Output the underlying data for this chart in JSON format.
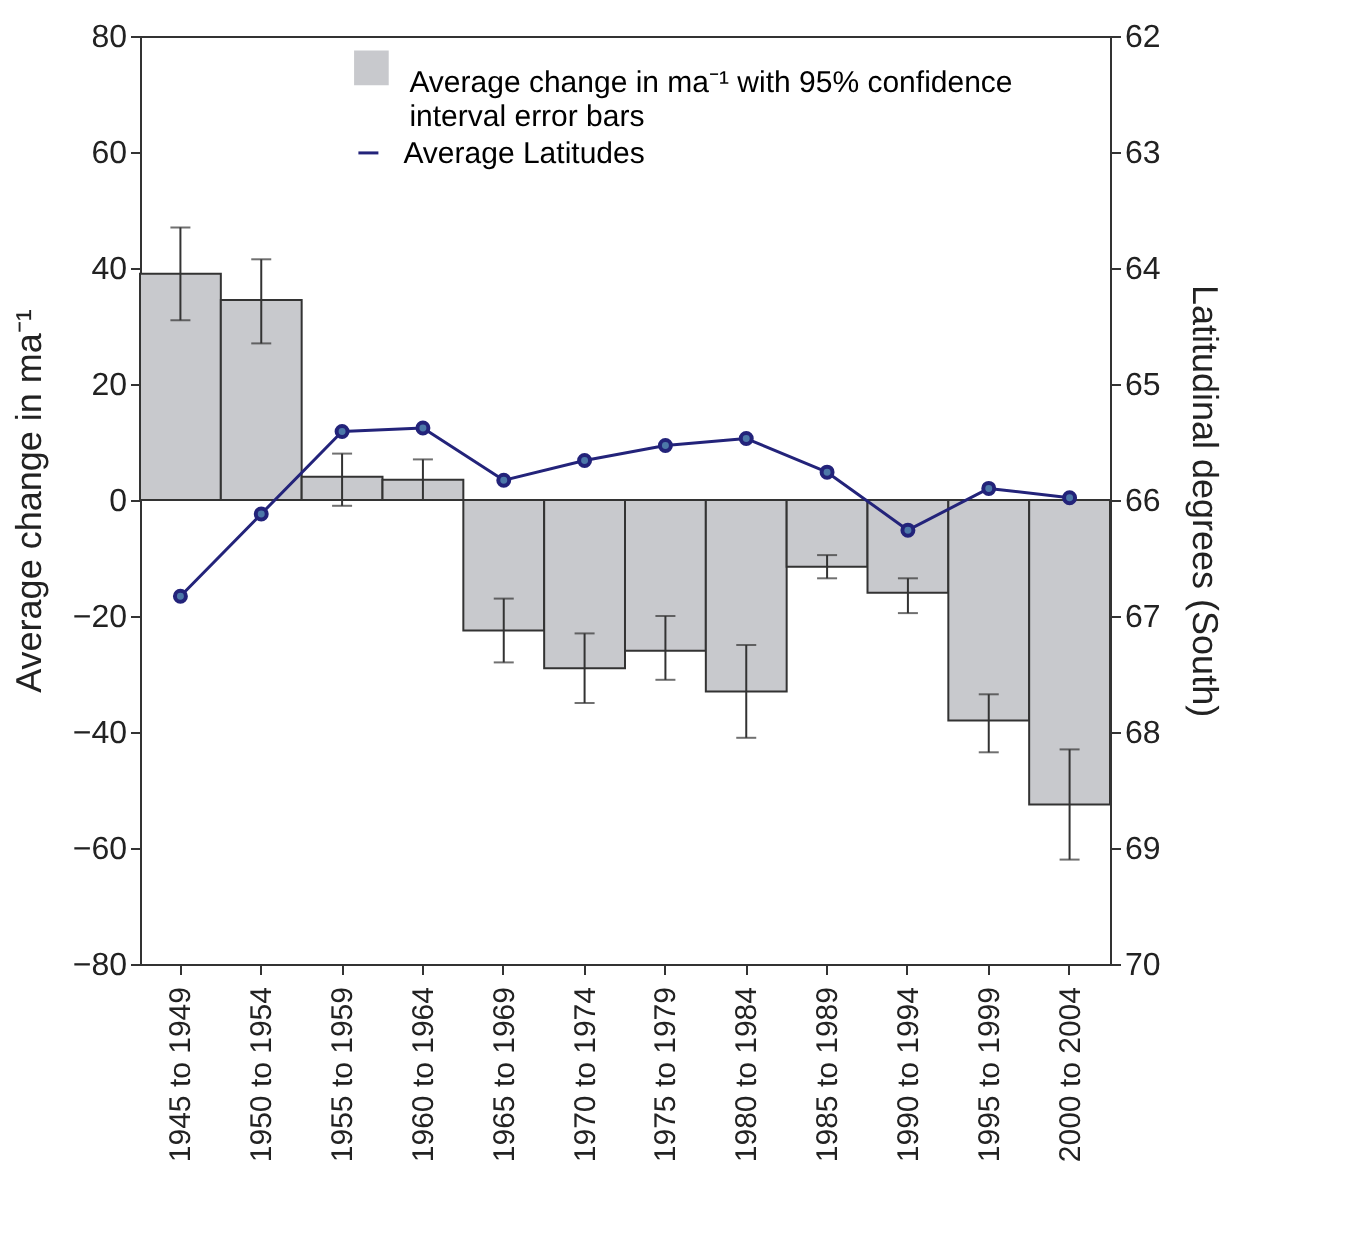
{
  "chart_data": {
    "type": "bar",
    "ylabel": "Average change in ma⁻¹",
    "y2label": "Latitudinal degrees (South)",
    "categories": [
      "1945 to 1949",
      "1950 to 1954",
      "1955 to 1959",
      "1960 to 1964",
      "1965 to 1969",
      "1970 to 1974",
      "1975 to 1979",
      "1980 to 1984",
      "1985 to 1989",
      "1990 to 1994",
      "1995 to 1999",
      "2000 to 2004"
    ],
    "series": [
      {
        "name": "Average change in ma⁻¹ with 95% confidence interval error bars",
        "color": "#c8c9cd",
        "values": [
          39,
          34.5,
          4,
          3.5,
          -22.5,
          -29,
          -26,
          -33,
          -11.5,
          -16,
          -38,
          -52.5
        ],
        "errors": [
          [
            31,
            47
          ],
          [
            27,
            41.5
          ],
          [
            -1,
            8
          ],
          [
            0,
            7
          ],
          [
            -28,
            -17
          ],
          [
            -35,
            -23
          ],
          [
            -31,
            -20
          ],
          [
            -41,
            -25
          ],
          [
            -13.5,
            -9.5
          ],
          [
            -19.5,
            -13.5
          ],
          [
            -43.5,
            -33.5
          ],
          [
            -62,
            -43
          ]
        ]
      },
      {
        "name": "Average Latitudes",
        "type": "line",
        "axis": "y2",
        "color": "#23237a",
        "marker": "circle",
        "values": [
          66.83,
          66.12,
          65.41,
          65.38,
          65.83,
          65.66,
          65.53,
          65.47,
          65.76,
          66.26,
          65.9,
          65.98
        ]
      }
    ],
    "ylim": [
      -80,
      80
    ],
    "yticks": [
      -80,
      -60,
      -40,
      -20,
      0,
      20,
      40,
      60,
      80
    ],
    "y2lim": [
      70,
      62
    ],
    "y2ticks": [
      62,
      63,
      64,
      65,
      66,
      67,
      68,
      69,
      70
    ],
    "grid": false,
    "legend": "top right"
  }
}
